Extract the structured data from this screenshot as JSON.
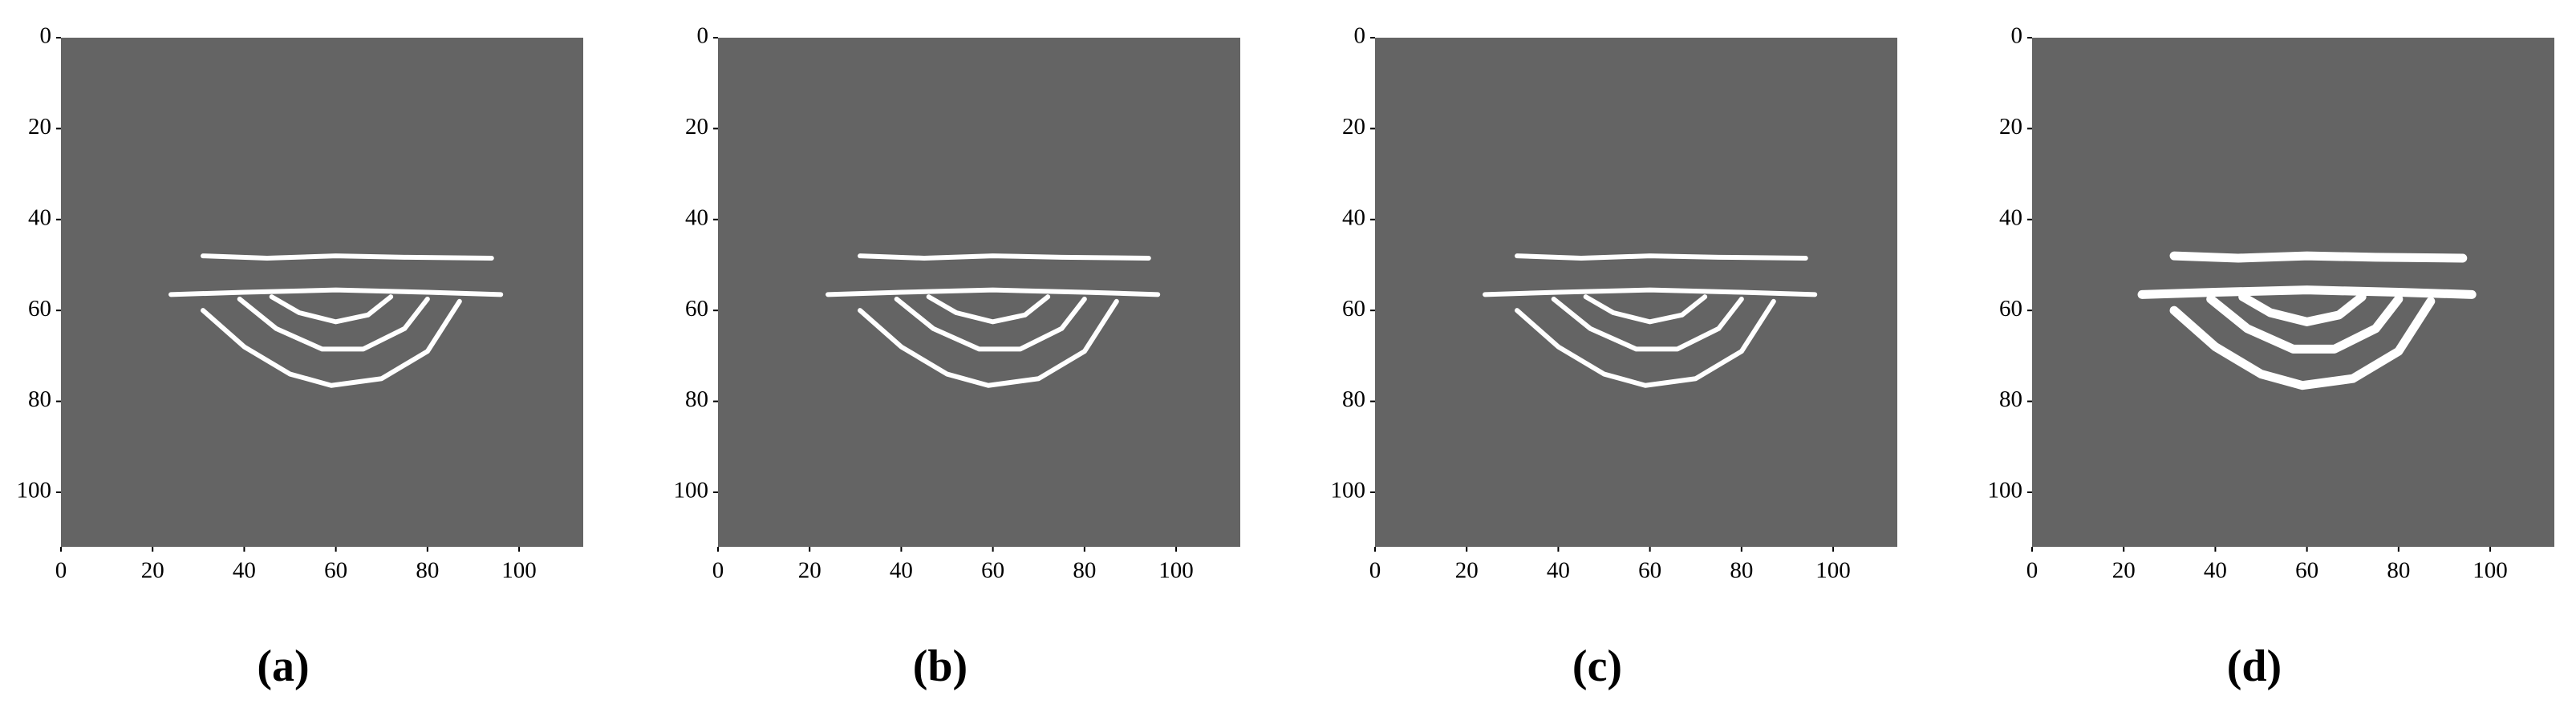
{
  "chart_data": [
    {
      "type": "image",
      "caption": "(a)",
      "xlim": [
        0,
        114
      ],
      "ylim": [
        0,
        112
      ],
      "y_inverted": true,
      "xticks": [
        0,
        20,
        40,
        60,
        80,
        100
      ],
      "yticks": [
        0,
        20,
        40,
        60,
        80,
        100
      ],
      "background": "#646464"
    },
    {
      "type": "image",
      "caption": "(b)",
      "xlim": [
        0,
        114
      ],
      "ylim": [
        0,
        112
      ],
      "y_inverted": true,
      "xticks": [
        0,
        20,
        40,
        60,
        80,
        100
      ],
      "yticks": [
        0,
        20,
        40,
        60,
        80,
        100
      ],
      "background": "#646464"
    },
    {
      "type": "image",
      "caption": "(c)",
      "xlim": [
        0,
        114
      ],
      "ylim": [
        0,
        112
      ],
      "y_inverted": true,
      "xticks": [
        0,
        20,
        40,
        60,
        80,
        100
      ],
      "yticks": [
        0,
        20,
        40,
        60,
        80,
        100
      ],
      "background": "#646464"
    },
    {
      "type": "image",
      "caption": "(d)",
      "xlim": [
        0,
        114
      ],
      "ylim": [
        0,
        112
      ],
      "y_inverted": true,
      "xticks": [
        0,
        20,
        40,
        60,
        80,
        100
      ],
      "yticks": [
        0,
        20,
        40,
        60,
        80,
        100
      ],
      "background": "#646464"
    }
  ]
}
